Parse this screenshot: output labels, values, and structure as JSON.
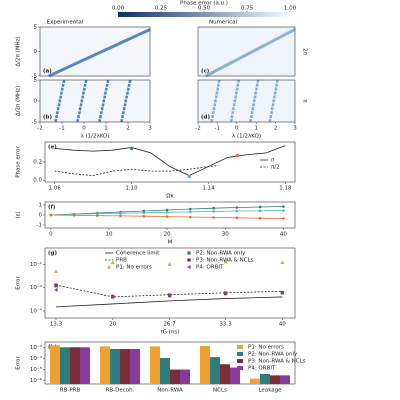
{
  "chart_data": [
    {
      "type": "heatmap",
      "title": "Phase error (a.u.)",
      "colorbar_lim": [
        0,
        1
      ],
      "colorbar_ticks": [
        {
          "value": 0,
          "label": "0.00"
        },
        {
          "value": 0.25,
          "label": "0.25"
        },
        {
          "value": 0.5,
          "label": "0.50"
        },
        {
          "value": 0.75,
          "label": "0.75"
        },
        {
          "value": 1,
          "label": "1.00"
        }
      ],
      "colors": [
        "#08306b",
        "#f7fbff"
      ],
      "column_titles": [
        "Experimental",
        "Numerical"
      ],
      "panel_labels": [
        "(a)",
        "(b)",
        "(c)",
        "(d)"
      ],
      "row_labels": [
        "2π",
        "π"
      ],
      "xlabel": "λ (1/2λKO)",
      "ylabel": "Δ/2π (MHz)",
      "xlim": [
        -2,
        3
      ],
      "xticks": [
        -2,
        -1,
        0,
        1,
        2,
        3
      ],
      "ylim": [
        -5,
        5
      ],
      "yticks": [
        -5,
        0,
        5
      ]
    },
    {
      "type": "line",
      "panel_label": "(e)",
      "xlabel": "Ωk",
      "ylabel": "Phase error",
      "xlim": [
        1.055,
        1.185
      ],
      "xticks": [
        1.06,
        {
          "value": 1.1,
          "label": "1.10"
        },
        1.14,
        1.18
      ],
      "ylim": [
        -0.02,
        0.42
      ],
      "yticks": [
        {
          "value": 0,
          "label": "0.0"
        },
        0.2
      ],
      "series": [
        {
          "name": "π",
          "color": "#222222",
          "dash": false,
          "x": [
            1.06,
            1.07,
            1.08,
            1.09,
            1.1,
            1.11,
            1.12,
            1.13,
            1.14,
            1.15,
            1.16,
            1.17,
            1.18
          ],
          "values": [
            0.35,
            0.33,
            0.32,
            0.33,
            0.36,
            0.3,
            0.15,
            0.05,
            0.15,
            0.25,
            0.28,
            0.3,
            0.38
          ]
        },
        {
          "name": "π/2",
          "color": "#222222",
          "dash": true,
          "x": [
            1.06,
            1.07,
            1.08,
            1.09,
            1.1,
            1.11,
            1.12,
            1.13,
            1.14,
            1.145
          ],
          "values": [
            0.1,
            0.07,
            0.05,
            0.1,
            0.12,
            0.1,
            0.1,
            0.12,
            0.15,
            0.16
          ]
        }
      ],
      "highlights": {
        "x": [
          1.1,
          1.13,
          1.155
        ],
        "values": [
          0.35,
          0.04,
          0.27
        ],
        "colors": [
          "#2a8c8c",
          "#4fc0c0",
          "#e86a33"
        ]
      }
    },
    {
      "type": "line",
      "panel_label": "(f)",
      "xlabel": "M",
      "ylabel": "⟨ε⟩",
      "xlim": [
        -1,
        42
      ],
      "xticks": [
        0,
        10,
        20,
        30,
        40
      ],
      "ylim": [
        -1.3,
        1.3
      ],
      "yticks": [
        -1,
        0,
        1
      ],
      "x": [
        0,
        4,
        8,
        12,
        16,
        20,
        24,
        28,
        32,
        36,
        40
      ],
      "series": [
        {
          "color": "#2a7f7f",
          "marker": "o",
          "values": [
            0,
            0.1,
            0.2,
            0.3,
            0.4,
            0.5,
            0.6,
            0.68,
            0.75,
            0.8,
            0.85
          ]
        },
        {
          "color": "#4fb8b0",
          "marker": "o",
          "values": [
            0,
            0.08,
            0.13,
            0.18,
            0.22,
            0.27,
            0.31,
            0.35,
            0.39,
            0.42,
            0.45
          ]
        },
        {
          "color": "#e86a33",
          "marker": "o",
          "values": [
            0,
            -0.03,
            -0.06,
            -0.09,
            -0.12,
            -0.16,
            -0.2,
            -0.24,
            -0.28,
            -0.32,
            -0.35
          ]
        }
      ]
    },
    {
      "type": "line",
      "panel_label": "(g)",
      "xlabel": "tG (ns)",
      "ylabel": "Error",
      "ylog": true,
      "xlim": [
        12,
        41.5
      ],
      "xticks": [
        13.3,
        20,
        26.7,
        33.3,
        40
      ],
      "ylim": [
        5e-05,
        0.05
      ],
      "yticks": [
        {
          "value": 0.0001,
          "label": "10⁻⁴"
        },
        {
          "value": 0.001,
          "label": "10⁻³"
        },
        {
          "value": 0.01,
          "label": "10⁻²"
        }
      ],
      "x": [
        13.3,
        20,
        26.7,
        33.3,
        40
      ],
      "series": [
        {
          "name": "Coherence limit",
          "color": "#222222",
          "dash": false,
          "values": [
            0.00015,
            0.0002,
            0.00027,
            0.00034,
            0.0004
          ]
        },
        {
          "name": "PRB",
          "color": "#222222",
          "dash": true,
          "values": [
            0.0013,
            0.0004,
            0.0005,
            0.0006,
            0.0007
          ]
        },
        {
          "name": "P1: No errors",
          "color": "#f0a030",
          "marker": "^",
          "values": [
            0.005,
            0.012,
            0.01,
            0.013,
            0.012
          ]
        },
        {
          "name": "P2: Non-RWA only",
          "color": "#2e7d7d",
          "marker": "s",
          "values": [
            0.0013,
            0.0004,
            0.00045,
            0.00055,
            0.0006
          ]
        },
        {
          "name": "P3: Non-RWA & NCLs",
          "color": "#7a2e3a",
          "marker": "s",
          "values": [
            0.0012,
            0.00042,
            0.00048,
            0.00058,
            0.00062
          ]
        },
        {
          "name": "P4: ORBIT",
          "color": "#8a3a9a",
          "marker": "<",
          "values": [
            0.0008,
            0.0004,
            0.00046,
            0.00056,
            0.0006
          ]
        }
      ]
    },
    {
      "type": "bar",
      "panel_label": "(h)",
      "ylabel": "Error",
      "ylog": true,
      "categories": [
        "RB-PRB",
        "RB-Decoh.",
        "Non-RWA",
        "NCLs",
        "Leakage"
      ],
      "ylim": [
        5e-07,
        0.003
      ],
      "yticks": [
        {
          "value": 1e-06,
          "label": "10⁻⁶"
        },
        {
          "value": 1e-05,
          "label": "10⁻⁵"
        },
        {
          "value": 0.0001,
          "label": "10⁻⁴"
        },
        {
          "value": 0.001,
          "label": "10⁻³"
        }
      ],
      "series": [
        {
          "name": "P1: No errors",
          "color": "#f0a030",
          "values": [
            0.0015,
            0.0012,
            0.0012,
            0.0013,
            1.5e-06
          ]
        },
        {
          "name": "P2: Non-RWA only",
          "color": "#2e7d7d",
          "values": [
            0.001,
            0.0007,
            0.00011,
            0.00013,
            4e-06
          ]
        },
        {
          "name": "P3: Non-RWA & NCLs",
          "color": "#7a2e3a",
          "values": [
            0.001,
            0.0007,
            1e-05,
            3e-05,
            3e-06
          ]
        },
        {
          "name": "P4: ORBIT",
          "color": "#8a3a9a",
          "values": [
            0.001,
            0.0007,
            1e-05,
            1.5e-05,
            3e-06
          ]
        }
      ]
    }
  ]
}
